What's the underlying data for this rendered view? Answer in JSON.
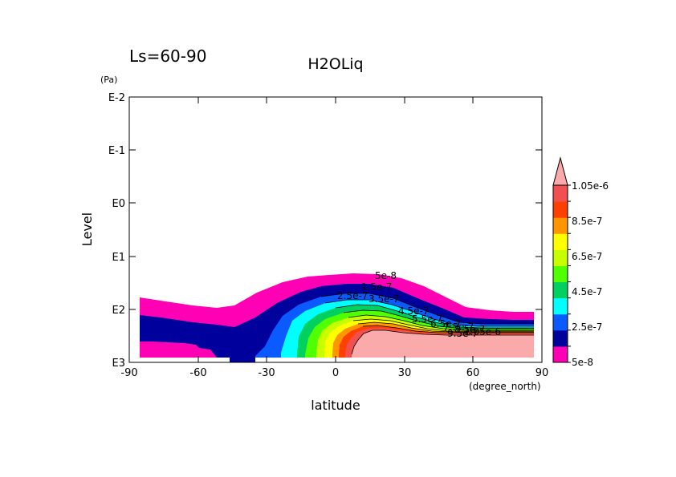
{
  "chart_data": {
    "type": "contour",
    "title": "H2OLiq",
    "subtitle": "Ls=60-90",
    "xlabel": "latitude",
    "xunits": "(degree_north)",
    "ylabel": "Level",
    "yunits": "(Pa)",
    "xlim": [
      -90,
      90
    ],
    "ylim_pa": [
      0.01,
      1000
    ],
    "yscale": "log",
    "yaxis_inverted": true,
    "x_ticks": [
      "-90",
      "-60",
      "-30",
      "0",
      "30",
      "60",
      "90"
    ],
    "y_ticks": [
      "E-2",
      "E-1",
      "E0",
      "E1",
      "E2",
      "E3"
    ],
    "colorbar": {
      "levels": [
        5e-08,
        1.5e-07,
        2.5e-07,
        3.5e-07,
        4.5e-07,
        5.5e-07,
        6.5e-07,
        7.5e-07,
        8.5e-07,
        9.5e-07,
        1.05e-06
      ],
      "tick_labels": [
        "5e-8",
        "2.5e-7",
        "4.5e-7",
        "6.5e-7",
        "8.5e-7",
        "1.05e-6"
      ],
      "colors": [
        "#ff00b4",
        "#00009c",
        "#0a5aff",
        "#00ffff",
        "#00d060",
        "#50ff00",
        "#c8ff00",
        "#ffff00",
        "#ff9600",
        "#ff4000",
        "#f05050",
        "#faaaaa"
      ],
      "extend": "max"
    },
    "contour_labels": [
      "5e-8",
      "1.5e-7",
      "2.5e-7",
      "3.5e-7",
      "4.5e-7",
      "5.5e-7",
      "6.5e-7",
      "7.5e-7",
      "8.5e-7",
      "9.5e-7",
      "1.05e-6"
    ],
    "fields": [
      {
        "level": "above 5e-8",
        "region": "lat -88..85, p ~25..700 Pa",
        "peak_lat": 18,
        "top_pa": 25
      },
      {
        "level": "above 1.5e-7",
        "region": "lat -50..85, p ~40..1000 Pa",
        "peak_lat": 20,
        "top_pa": 40
      },
      {
        "level": "above 1.05e-6",
        "region": "lat 3..85, p ~180..1000 Pa",
        "peak_lat": 15,
        "top_pa": 180
      }
    ]
  }
}
